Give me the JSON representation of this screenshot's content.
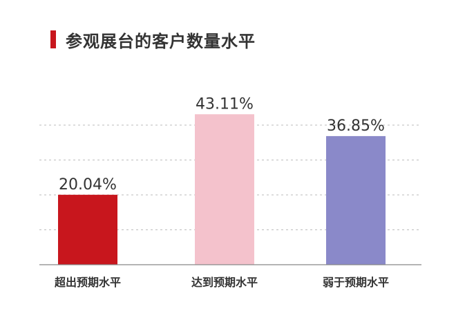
{
  "colors": {
    "accent": "#c8161d",
    "grid": "#bbbbbb",
    "axis": "#888888"
  },
  "chart_data": {
    "type": "bar",
    "title": "参观展台的客户数量水平",
    "categories": [
      "超出预期水平",
      "达到预期水平",
      "弱于预期水平"
    ],
    "values": [
      20.04,
      43.11,
      36.85
    ],
    "value_labels": [
      "20.04%",
      "43.11%",
      "36.85%"
    ],
    "bar_colors": [
      "#c8161d",
      "#f4c2cc",
      "#8a89c9"
    ],
    "ylim": [
      0,
      40
    ],
    "grid": "dashed horizontal",
    "xlabel": "",
    "ylabel": ""
  }
}
